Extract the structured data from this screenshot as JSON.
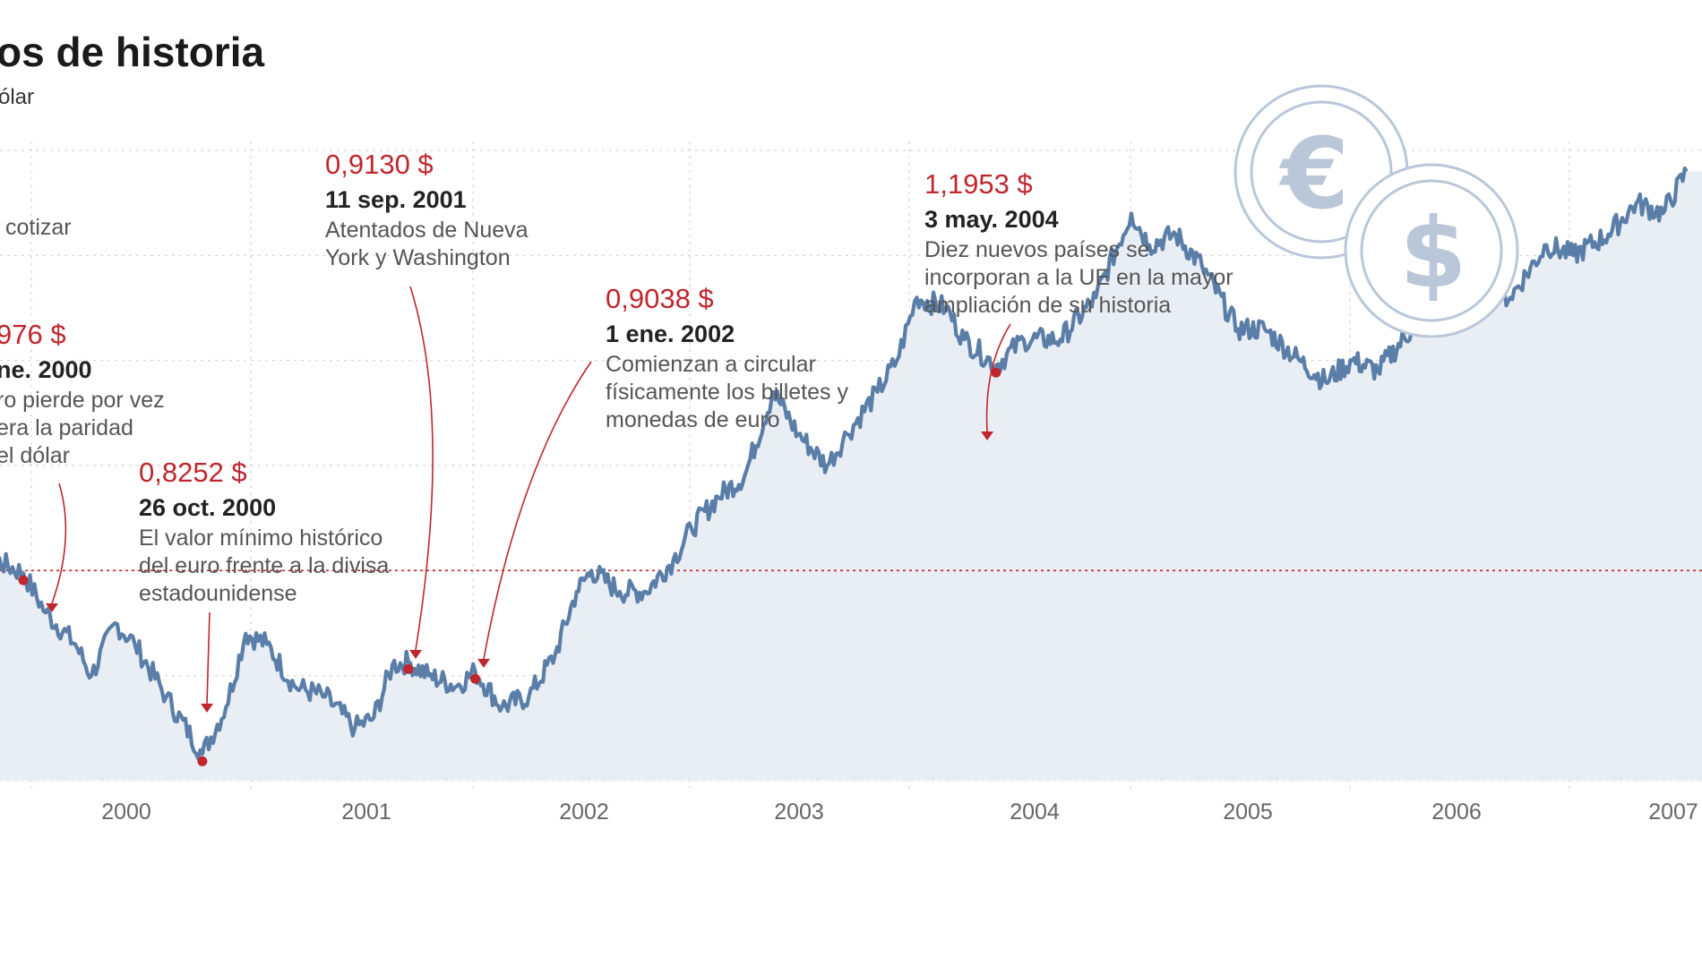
{
  "chart_data": {
    "type": "line",
    "title": "os de historia",
    "subtitle": "ólar",
    "x_ticks": [
      "2000",
      "2001",
      "2002",
      "2003",
      "2004",
      "2005",
      "2006",
      "2007"
    ],
    "ylim": [
      0.8,
      1.4
    ],
    "grid": true,
    "parity_value": 1.0,
    "series": [
      {
        "values": [
          [
            "1999-09-01",
            1.05
          ],
          [
            "1999-11-01",
            1.04
          ],
          [
            "1999-12-15",
            1.01
          ],
          [
            "2000-01-27",
            0.9976
          ],
          [
            "2000-03-01",
            0.96
          ],
          [
            "2000-04-15",
            0.93
          ],
          [
            "2000-05-10",
            0.9
          ],
          [
            "2000-06-15",
            0.95
          ],
          [
            "2000-07-15",
            0.93
          ],
          [
            "2000-09-01",
            0.88
          ],
          [
            "2000-10-26",
            0.8252
          ],
          [
            "2000-12-01",
            0.87
          ],
          [
            "2000-12-31",
            0.94
          ],
          [
            "2001-02-01",
            0.93
          ],
          [
            "2001-03-15",
            0.89
          ],
          [
            "2001-05-01",
            0.88
          ],
          [
            "2001-06-15",
            0.85
          ],
          [
            "2001-07-15",
            0.86
          ],
          [
            "2001-08-15",
            0.91
          ],
          [
            "2001-09-11",
            0.913
          ],
          [
            "2001-10-15",
            0.9
          ],
          [
            "2001-12-01",
            0.89
          ],
          [
            "2002-01-01",
            0.9038
          ],
          [
            "2002-02-15",
            0.87
          ],
          [
            "2002-04-01",
            0.88
          ],
          [
            "2002-05-15",
            0.92
          ],
          [
            "2002-06-20",
            0.98
          ],
          [
            "2002-07-15",
            1.0
          ],
          [
            "2002-09-01",
            0.98
          ],
          [
            "2002-10-15",
            0.98
          ],
          [
            "2002-12-01",
            1.01
          ],
          [
            "2003-01-01",
            1.04
          ],
          [
            "2003-02-15",
            1.07
          ],
          [
            "2003-04-01",
            1.09
          ],
          [
            "2003-05-20",
            1.17
          ],
          [
            "2003-07-01",
            1.13
          ],
          [
            "2003-08-15",
            1.1
          ],
          [
            "2003-09-15",
            1.13
          ],
          [
            "2003-11-01",
            1.17
          ],
          [
            "2003-12-01",
            1.2
          ],
          [
            "2004-01-01",
            1.26
          ],
          [
            "2004-02-15",
            1.25
          ],
          [
            "2004-03-15",
            1.22
          ],
          [
            "2004-05-03",
            1.1953
          ],
          [
            "2004-06-15",
            1.22
          ],
          [
            "2004-08-15",
            1.22
          ],
          [
            "2004-10-15",
            1.26
          ],
          [
            "2004-12-15",
            1.34
          ],
          [
            "2005-01-15",
            1.31
          ],
          [
            "2005-03-01",
            1.32
          ],
          [
            "2005-04-15",
            1.29
          ],
          [
            "2005-06-15",
            1.23
          ],
          [
            "2005-08-01",
            1.23
          ],
          [
            "2005-10-01",
            1.2
          ],
          [
            "2005-11-15",
            1.18
          ],
          [
            "2006-01-01",
            1.2
          ],
          [
            "2006-02-15",
            1.19
          ],
          [
            "2006-04-15",
            1.23
          ],
          [
            "2006-06-15",
            1.27
          ],
          [
            "2006-08-01",
            1.27
          ],
          [
            "2006-10-01",
            1.26
          ],
          [
            "2006-12-01",
            1.31
          ],
          [
            "2007-01-15",
            1.3
          ],
          [
            "2007-03-15",
            1.32
          ],
          [
            "2007-05-01",
            1.35
          ],
          [
            "2007-06-15",
            1.34
          ],
          [
            "2007-07-25",
            1.38
          ]
        ]
      }
    ],
    "annotations": [
      {
        "value": "976 $",
        "date": "ne. 2000",
        "text": [
          "ro pierde por vez",
          "era la paridad",
          "el dólar"
        ],
        "at": [
          "2000-01-27",
          0.9976
        ]
      },
      {
        "value": "0,8252 $",
        "date": "26 oct. 2000",
        "text": [
          "El valor mínimo histórico",
          "del euro frente a la divisa",
          "estadounidense"
        ],
        "at": [
          "2000-10-26",
          0.8252
        ]
      },
      {
        "value": "0,9130 $",
        "date": "11 sep. 2001",
        "text": [
          "Atentados de Nueva",
          "York y Washington"
        ],
        "at": [
          "2001-09-11",
          0.913
        ]
      },
      {
        "value": "0,9038 $",
        "date": "1 ene. 2002",
        "text": [
          "Comienzan a circular",
          "físicamente los billetes y",
          "monedas de euro"
        ],
        "at": [
          "2002-01-01",
          0.9038
        ]
      },
      {
        "value": "1,1953 $",
        "date": "3 may. 2004",
        "text": [
          "Diez nuevos países se",
          "incorporan a la UE en la mayor",
          "ampliación de su historia"
        ],
        "at": [
          "2004-05-03",
          1.1953
        ]
      }
    ],
    "cropped_text": "cotizar"
  },
  "icons": {
    "euro_coin": "euro-coin-icon",
    "dollar_coin": "dollar-coin-icon",
    "euro_symbol": "€",
    "dollar_symbol": "$"
  },
  "colors": {
    "line": "#5a7ea8",
    "area": "#e9eef4",
    "accent": "#c0262d"
  }
}
